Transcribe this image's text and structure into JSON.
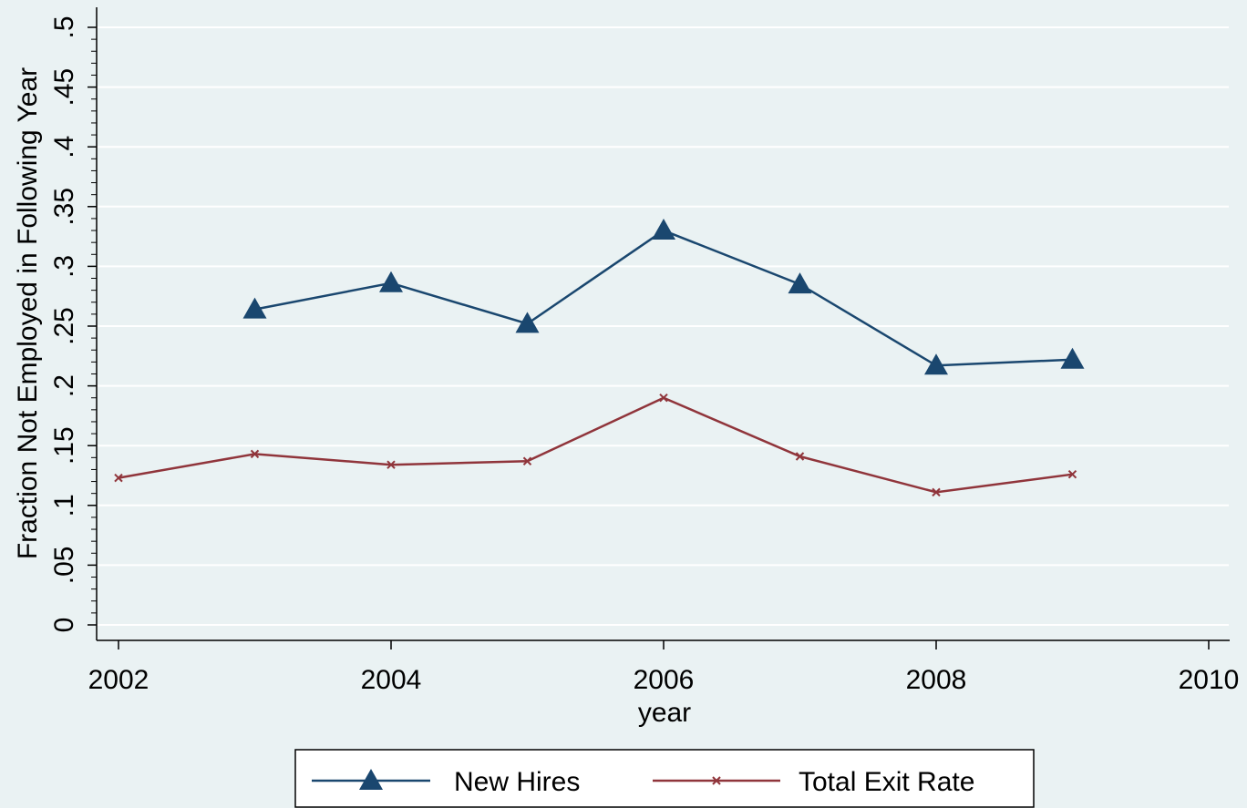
{
  "chart_data": {
    "type": "line",
    "title": "",
    "xlabel": "year",
    "ylabel": "Fraction Not Employed in Following Year",
    "xlim": [
      2002,
      2010
    ],
    "ylim": [
      0,
      0.5
    ],
    "x_ticks": [
      2002,
      2004,
      2006,
      2008,
      2010
    ],
    "x_tick_labels": [
      "2002",
      "2004",
      "2006",
      "2008",
      "2010"
    ],
    "y_ticks": [
      0,
      0.05,
      0.1,
      0.15,
      0.2,
      0.25,
      0.3,
      0.35,
      0.4,
      0.45,
      0.5
    ],
    "y_tick_labels": [
      "0",
      ".05",
      ".1",
      ".15",
      ".2",
      ".25",
      ".3",
      ".35",
      ".4",
      ".45",
      ".5"
    ],
    "grid": true,
    "legend_position": "bottom",
    "series": [
      {
        "name": "New Hires",
        "color": "#1a476f",
        "marker": "triangle",
        "x": [
          2003,
          2004,
          2005,
          2006,
          2007,
          2008,
          2009
        ],
        "y": [
          0.264,
          0.286,
          0.252,
          0.33,
          0.285,
          0.217,
          0.222
        ]
      },
      {
        "name": "Total Exit Rate",
        "color": "#90353b",
        "marker": "x",
        "x": [
          2002,
          2003,
          2004,
          2005,
          2006,
          2007,
          2008,
          2009
        ],
        "y": [
          0.123,
          0.143,
          0.134,
          0.137,
          0.19,
          0.141,
          0.111,
          0.126
        ]
      }
    ]
  }
}
